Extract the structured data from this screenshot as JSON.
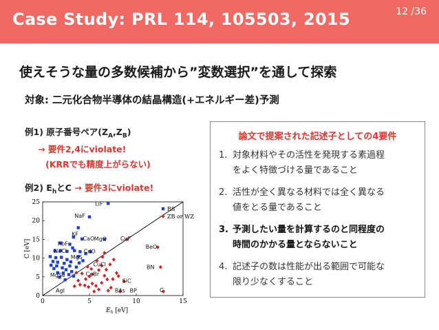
{
  "header": {
    "title": "Case Study: PRL 114, 105503, 2015",
    "page": "12",
    "total": "/36"
  },
  "headline": "使えそうな量の多数候補から”変数選択”を通して探索",
  "subline": "対象: 二元化合物半導体の結晶構造(+エネルギー差)予測",
  "example1": {
    "label": "例1) 原子番号ペア(Z",
    "sub_a": "A",
    "comma": ",Z",
    "sub_b": "B",
    "close": ")",
    "violation": "→ 要件2,4にviolate!",
    "note": "(KRRでも精度上がらない)"
  },
  "example2": {
    "label": "例2) E",
    "sub_h": "h",
    "and_c": "とC",
    "violation": "→ 要件3にviolate!"
  },
  "requirements": {
    "title": "論文で提案された記述子としての4要件",
    "items": [
      {
        "num": "1.",
        "line1": "対象材料やその活性を発現する素過程",
        "line2": "をよく特徴づける量であること",
        "bold": false
      },
      {
        "num": "2.",
        "line1": "活性が全く異なる材料では全く異なる",
        "line2": "値をとる量であること",
        "bold": false
      },
      {
        "num": "3.",
        "line1": "予測したい量を計算するのと同程度の",
        "line2": "時間のかかる量とならないこと",
        "bold": true
      },
      {
        "num": "4.",
        "line1": "記述子の数は性能が出る範囲で可能な",
        "line2": "限り少なくすること",
        "bold": false
      }
    ]
  },
  "colors": {
    "header": "#f06a63",
    "accent_red": "#e0352f",
    "rs_blue": "#1f3fd8",
    "zb_red": "#d42020"
  },
  "chart_data": {
    "type": "scatter",
    "xlabel_main": "E",
    "xlabel_sub": "h",
    "xlabel_unit": " [eV]",
    "ylabel": "C [eV]",
    "xlim": [
      0,
      15
    ],
    "ylim": [
      0,
      25
    ],
    "x_ticks": [
      "0",
      "5",
      "10",
      "15"
    ],
    "y_ticks": [
      "0",
      "5",
      "10",
      "15",
      "20",
      "25"
    ],
    "legend_position": "top-right",
    "divider_line": {
      "x": [
        0,
        15
      ],
      "y": [
        0,
        25
      ]
    },
    "series": [
      {
        "name": "RS",
        "marker": "square",
        "points": [
          [
            7.0,
            24.6
          ],
          [
            5.0,
            21.0
          ],
          [
            3.8,
            18.1
          ],
          [
            3.3,
            15.6
          ],
          [
            4.2,
            15.1
          ],
          [
            6.6,
            15.0
          ],
          [
            1.9,
            14.0
          ],
          [
            2.9,
            13.7
          ],
          [
            1.3,
            11.9
          ],
          [
            3.2,
            12.7
          ],
          [
            4.0,
            11.7
          ],
          [
            1.9,
            12.0
          ],
          [
            2.6,
            11.8
          ],
          [
            3.4,
            12.0
          ],
          [
            4.6,
            11.2
          ],
          [
            0.8,
            10.4
          ],
          [
            1.4,
            10.1
          ],
          [
            2.0,
            10.2
          ],
          [
            2.6,
            9.6
          ],
          [
            3.8,
            10.4
          ],
          [
            1.1,
            9.1
          ],
          [
            1.6,
            8.9
          ],
          [
            2.3,
            8.6
          ],
          [
            3.0,
            9.0
          ],
          [
            3.9,
            8.7
          ],
          [
            0.9,
            8.1
          ],
          [
            1.5,
            7.9
          ],
          [
            2.1,
            7.4
          ],
          [
            2.9,
            7.9
          ],
          [
            3.6,
            7.6
          ],
          [
            1.2,
            7.2
          ],
          [
            2.5,
            6.9
          ],
          [
            3.1,
            6.4
          ],
          [
            1.6,
            6.1
          ],
          [
            2.2,
            6.0
          ],
          [
            2.8,
            5.6
          ],
          [
            1.8,
            4.9
          ],
          [
            3.3,
            5.2
          ],
          [
            2.4,
            4.2
          ],
          [
            4.3,
            9.3
          ],
          [
            5.1,
            11.7
          ]
        ]
      },
      {
        "name": "ZB or WZ",
        "marker": "diamond",
        "points": [
          [
            9.0,
            15.0
          ],
          [
            12.3,
            12.9
          ],
          [
            12.6,
            7.6
          ],
          [
            12.9,
            1.1
          ],
          [
            8.7,
            3.8
          ],
          [
            5.5,
            1.1
          ],
          [
            8.3,
            1.1
          ],
          [
            5.3,
            5.7
          ],
          [
            6.3,
            8.0
          ],
          [
            3.4,
            2.5
          ],
          [
            6.6,
            11.4
          ],
          [
            7.2,
            8.3
          ],
          [
            6.8,
            6.9
          ],
          [
            7.5,
            4.4
          ],
          [
            7.9,
            6.0
          ],
          [
            7.6,
            9.6
          ],
          [
            6.0,
            6.8
          ],
          [
            4.8,
            7.7
          ],
          [
            5.8,
            9.3
          ],
          [
            5.0,
            5.1
          ],
          [
            4.6,
            4.4
          ],
          [
            5.3,
            3.2
          ],
          [
            6.3,
            3.4
          ],
          [
            6.9,
            4.3
          ],
          [
            4.5,
            2.7
          ],
          [
            4.9,
            2.3
          ],
          [
            5.7,
            2.6
          ],
          [
            4.0,
            2.9
          ],
          [
            6.0,
            1.6
          ],
          [
            7.3,
            2.1
          ],
          [
            3.8,
            4.0
          ],
          [
            4.2,
            5.9
          ],
          [
            7.0,
            1.3
          ],
          [
            5.2,
            7.1
          ],
          [
            3.6,
            6.1
          ],
          [
            6.6,
            5.3
          ],
          [
            8.1,
            5.2
          ],
          [
            6.4,
            10.3
          ]
        ]
      }
    ],
    "annotations": [
      {
        "text": "LiF",
        "x": 5.6,
        "y": 24.0
      },
      {
        "text": "NaF",
        "x": 3.4,
        "y": 20.8
      },
      {
        "text": "KF",
        "x": 3.1,
        "y": 15.9
      },
      {
        "text": "CaO",
        "x": 4.3,
        "y": 14.7
      },
      {
        "text": "MgO",
        "x": 5.5,
        "y": 14.6
      },
      {
        "text": "CuF",
        "x": 8.3,
        "y": 14.7
      },
      {
        "text": "RbF",
        "x": 1.6,
        "y": 13.3
      },
      {
        "text": "NaCl",
        "x": 1.2,
        "y": 11.4
      },
      {
        "text": "CdO",
        "x": 4.4,
        "y": 11.3
      },
      {
        "text": "BeO",
        "x": 11.0,
        "y": 12.5
      },
      {
        "text": "MgS",
        "x": 3.0,
        "y": 9.7
      },
      {
        "text": "CuCl",
        "x": 5.4,
        "y": 7.8
      },
      {
        "text": "BN",
        "x": 11.1,
        "y": 7.1
      },
      {
        "text": "CuBr",
        "x": 4.6,
        "y": 5.2
      },
      {
        "text": "MgSe",
        "x": 0.8,
        "y": 5.0
      },
      {
        "text": "SiC",
        "x": 8.5,
        "y": 3.4
      },
      {
        "text": "AgI",
        "x": 1.4,
        "y": 0.8
      },
      {
        "text": "BAs",
        "x": 7.7,
        "y": 0.8
      },
      {
        "text": "BP",
        "x": 9.3,
        "y": 0.8
      },
      {
        "text": "C",
        "x": 12.5,
        "y": 0.9
      }
    ]
  }
}
